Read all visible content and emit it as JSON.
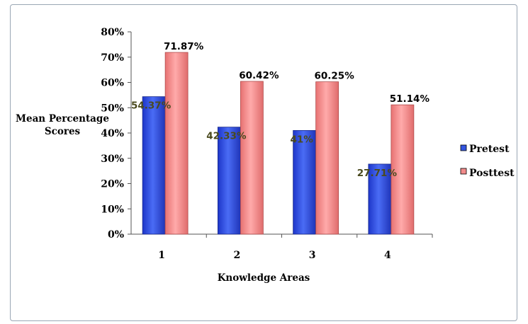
{
  "chart_data": {
    "type": "bar",
    "categories": [
      "1",
      "2",
      "3",
      "4"
    ],
    "series": [
      {
        "name": "Pretest",
        "values": [
          54.37,
          42.33,
          41,
          27.71
        ],
        "labels": [
          "54.37%",
          "42.33%",
          "41%",
          "27.71%"
        ],
        "color": "#3355e0",
        "label_color": "#4a4a1e"
      },
      {
        "name": "Posttest",
        "values": [
          71.87,
          60.42,
          60.25,
          51.14
        ],
        "labels": [
          "71.87%",
          "60.42%",
          "60.25%",
          "51.14%"
        ],
        "color": "#f28b8b",
        "label_color": "#000000"
      }
    ],
    "yticks": [
      "0%",
      "10%",
      "20%",
      "30%",
      "40%",
      "50%",
      "60%",
      "70%",
      "80%"
    ],
    "ylim": [
      0,
      80
    ],
    "ylabel": [
      "Mean Percentage",
      "Scores"
    ],
    "xlabel": "Knowledge Areas",
    "legend_position": "right",
    "grid": false
  }
}
